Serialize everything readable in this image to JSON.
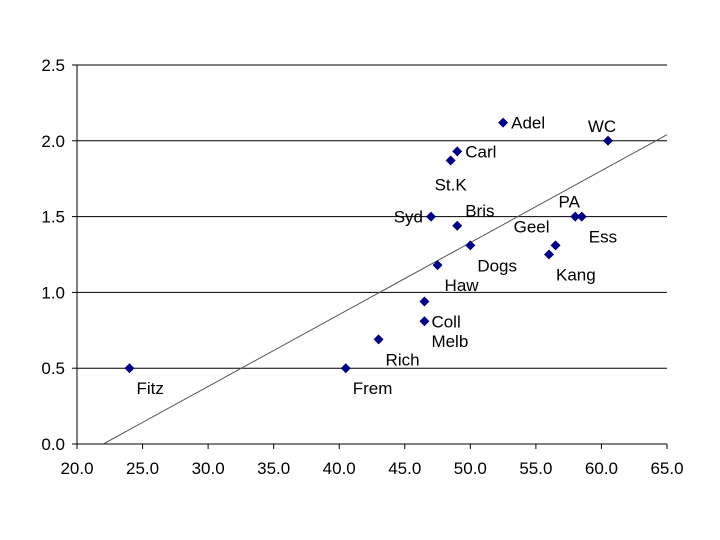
{
  "chart_data": {
    "type": "scatter",
    "title": "",
    "xlabel": "",
    "ylabel": "",
    "xlim": [
      20.0,
      65.0
    ],
    "ylim": [
      0.0,
      2.5
    ],
    "x_ticks": [
      "20.0",
      "25.0",
      "30.0",
      "35.0",
      "40.0",
      "45.0",
      "50.0",
      "55.0",
      "60.0",
      "65.0"
    ],
    "x_tick_values": [
      20,
      25,
      30,
      35,
      40,
      45,
      50,
      55,
      60,
      65
    ],
    "y_ticks": [
      "0.0",
      "0.5",
      "1.0",
      "1.5",
      "2.0",
      "2.5"
    ],
    "y_tick_values": [
      0,
      0.5,
      1.0,
      1.5,
      2.0,
      2.5
    ],
    "grid": "horizontal",
    "marker_color": "#000080",
    "trendline": {
      "x": [
        22.0,
        65.0
      ],
      "y": [
        0.0,
        2.04
      ]
    },
    "points": [
      {
        "label": "Adel",
        "x": 52.5,
        "y": 2.12,
        "anchor": "right"
      },
      {
        "label": "WC",
        "x": 60.5,
        "y": 2.0,
        "anchor": "above"
      },
      {
        "label": "Carl",
        "x": 49.0,
        "y": 1.93,
        "anchor": "right"
      },
      {
        "label": "St.K",
        "x": 48.5,
        "y": 1.87,
        "anchor": "below"
      },
      {
        "label": "Syd",
        "x": 47.0,
        "y": 1.5,
        "anchor": "left"
      },
      {
        "label": "Bris",
        "x": 49.0,
        "y": 1.44,
        "anchor": "above-right"
      },
      {
        "label": "PA",
        "x": 58.0,
        "y": 1.5,
        "anchor": "above"
      },
      {
        "label": "Ess",
        "x": 58.5,
        "y": 1.5,
        "anchor": "below-right"
      },
      {
        "label": "Geel",
        "x": 56.5,
        "y": 1.31,
        "anchor": "above-left"
      },
      {
        "label": "Dogs",
        "x": 50.0,
        "y": 1.31,
        "anchor": "below-right"
      },
      {
        "label": "Kang",
        "x": 56.0,
        "y": 1.25,
        "anchor": "below-right"
      },
      {
        "label": "Haw",
        "x": 47.5,
        "y": 1.18,
        "anchor": "below-right"
      },
      {
        "label": "Coll",
        "x": 46.5,
        "y": 0.94,
        "anchor": "below-right"
      },
      {
        "label": "Melb",
        "x": 46.5,
        "y": 0.81,
        "anchor": "below-right"
      },
      {
        "label": "Rich",
        "x": 43.0,
        "y": 0.69,
        "anchor": "below-right"
      },
      {
        "label": "Fitz",
        "x": 24.0,
        "y": 0.5,
        "anchor": "below-right"
      },
      {
        "label": "Frem",
        "x": 40.5,
        "y": 0.5,
        "anchor": "below-right"
      }
    ]
  }
}
